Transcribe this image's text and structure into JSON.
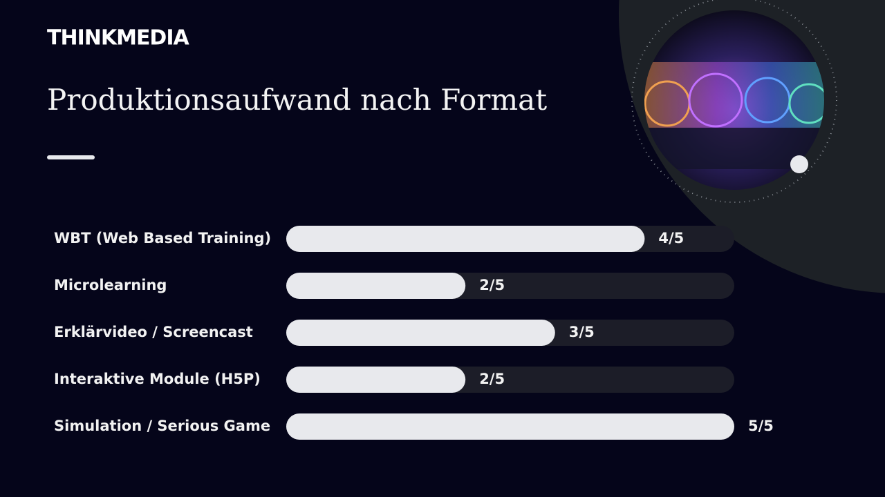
{
  "brand": "THINKMEDIA",
  "chart_data": {
    "type": "bar",
    "orientation": "horizontal",
    "title": "Produktionsaufwand nach Format",
    "categories": [
      "WBT (Web Based Training)",
      "Microlearning",
      "Erklärvideo / Screencast",
      "Interaktive Module (H5P)",
      "Simulation / Serious Game"
    ],
    "values": [
      4,
      2,
      3,
      2,
      5
    ],
    "value_labels": [
      "4/5",
      "2/5",
      "3/5",
      "2/5",
      "5/5"
    ],
    "xlim": [
      0,
      5
    ],
    "color": "#e8e9ed",
    "track_color": "#1c1d28"
  }
}
